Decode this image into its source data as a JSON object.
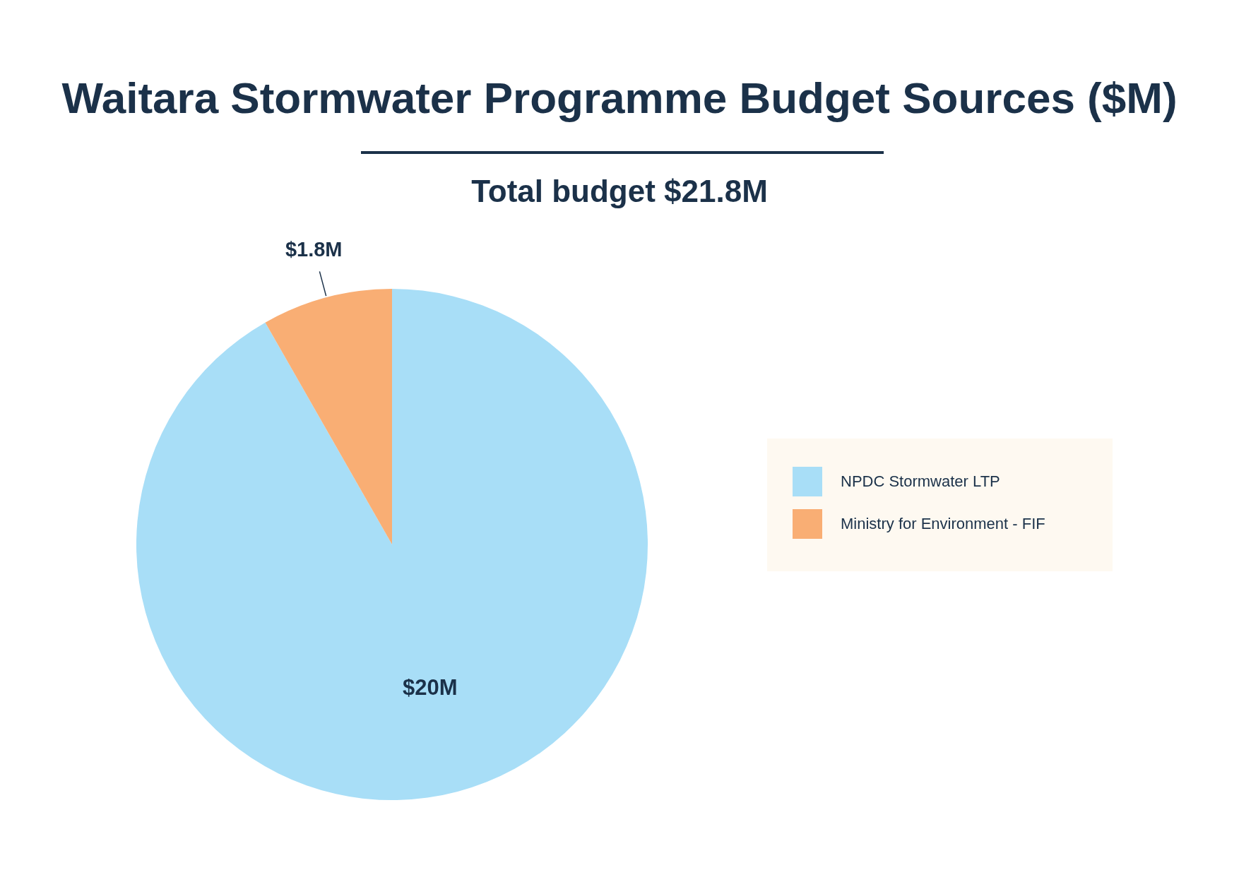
{
  "chart_data": {
    "type": "pie",
    "title": "Waitara Stormwater Programme Budget Sources ($M)",
    "subtitle": "Total budget $21.8M",
    "categories": [
      "NPDC Stormwater LTP",
      "Ministry for Environment - FIF"
    ],
    "values": [
      20,
      1.8
    ],
    "colors": [
      "#a8def7",
      "#f9ae74"
    ],
    "value_labels": [
      "$20M",
      "$1.8M"
    ],
    "legend": "right"
  }
}
